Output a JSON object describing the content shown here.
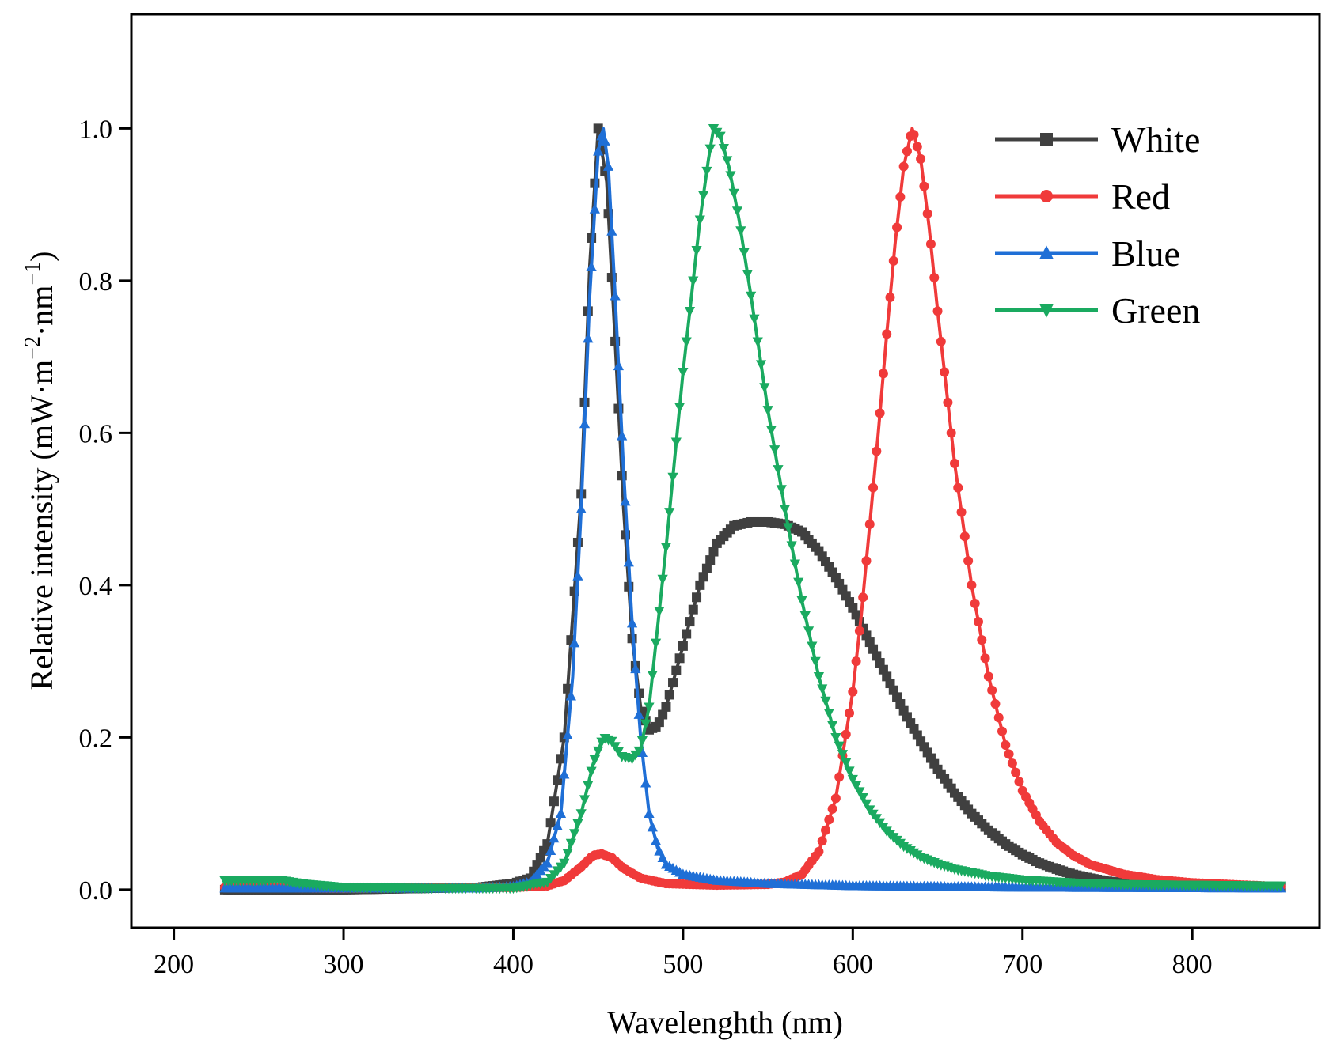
{
  "chart_data": {
    "type": "line",
    "title": "",
    "xlabel": "Wavelenghth (nm)",
    "ylabel": "Relative intensity (mW·m",
    "ylabel_sup1": "−2",
    "ylabel_mid": "·nm",
    "ylabel_sup2": "−1",
    "ylabel_end": ")",
    "xlim": [
      175,
      875
    ],
    "ylim": [
      -0.05,
      1.15
    ],
    "xticks": [
      "200",
      "300",
      "400",
      "500",
      "600",
      "700",
      "800"
    ],
    "yticks": [
      "0.0",
      "0.2",
      "0.4",
      "0.6",
      "0.8",
      "1.0"
    ],
    "legend_position": "top-right",
    "series": [
      {
        "name": "White",
        "color": "#404040",
        "marker": "square",
        "points": [
          [
            230,
            0.0
          ],
          [
            300,
            0.0
          ],
          [
            380,
            0.003
          ],
          [
            400,
            0.008
          ],
          [
            410,
            0.015
          ],
          [
            420,
            0.06
          ],
          [
            430,
            0.2
          ],
          [
            440,
            0.52
          ],
          [
            445,
            0.82
          ],
          [
            450,
            1.0
          ],
          [
            455,
            0.93
          ],
          [
            460,
            0.72
          ],
          [
            465,
            0.5
          ],
          [
            470,
            0.33
          ],
          [
            475,
            0.24
          ],
          [
            480,
            0.21
          ],
          [
            485,
            0.215
          ],
          [
            490,
            0.24
          ],
          [
            500,
            0.32
          ],
          [
            510,
            0.4
          ],
          [
            520,
            0.455
          ],
          [
            530,
            0.478
          ],
          [
            540,
            0.483
          ],
          [
            550,
            0.483
          ],
          [
            560,
            0.48
          ],
          [
            570,
            0.47
          ],
          [
            580,
            0.445
          ],
          [
            590,
            0.41
          ],
          [
            600,
            0.37
          ],
          [
            610,
            0.325
          ],
          [
            620,
            0.28
          ],
          [
            630,
            0.235
          ],
          [
            640,
            0.195
          ],
          [
            650,
            0.158
          ],
          [
            660,
            0.127
          ],
          [
            670,
            0.1
          ],
          [
            680,
            0.078
          ],
          [
            690,
            0.06
          ],
          [
            700,
            0.046
          ],
          [
            710,
            0.035
          ],
          [
            720,
            0.027
          ],
          [
            730,
            0.02
          ],
          [
            740,
            0.015
          ],
          [
            750,
            0.011
          ],
          [
            760,
            0.009
          ],
          [
            780,
            0.007
          ],
          [
            800,
            0.005
          ],
          [
            830,
            0.004
          ],
          [
            852,
            0.003
          ]
        ]
      },
      {
        "name": "Red",
        "color": "#f03a3a",
        "marker": "circle",
        "points": [
          [
            230,
            0.003
          ],
          [
            300,
            0.002
          ],
          [
            400,
            0.003
          ],
          [
            420,
            0.005
          ],
          [
            430,
            0.012
          ],
          [
            440,
            0.03
          ],
          [
            447,
            0.045
          ],
          [
            452,
            0.047
          ],
          [
            458,
            0.042
          ],
          [
            465,
            0.028
          ],
          [
            475,
            0.015
          ],
          [
            490,
            0.008
          ],
          [
            520,
            0.006
          ],
          [
            550,
            0.007
          ],
          [
            560,
            0.01
          ],
          [
            570,
            0.02
          ],
          [
            580,
            0.05
          ],
          [
            590,
            0.12
          ],
          [
            600,
            0.26
          ],
          [
            605,
            0.36
          ],
          [
            610,
            0.48
          ],
          [
            615,
            0.6
          ],
          [
            620,
            0.73
          ],
          [
            625,
            0.85
          ],
          [
            630,
            0.95
          ],
          [
            635,
            1.0
          ],
          [
            640,
            0.96
          ],
          [
            645,
            0.87
          ],
          [
            650,
            0.76
          ],
          [
            655,
            0.66
          ],
          [
            660,
            0.56
          ],
          [
            670,
            0.4
          ],
          [
            680,
            0.28
          ],
          [
            690,
            0.19
          ],
          [
            700,
            0.13
          ],
          [
            710,
            0.09
          ],
          [
            720,
            0.062
          ],
          [
            730,
            0.045
          ],
          [
            740,
            0.033
          ],
          [
            760,
            0.02
          ],
          [
            780,
            0.013
          ],
          [
            800,
            0.009
          ],
          [
            830,
            0.006
          ],
          [
            852,
            0.004
          ]
        ]
      },
      {
        "name": "Blue",
        "color": "#1f6fd6",
        "marker": "triangle-up",
        "points": [
          [
            230,
            0.002
          ],
          [
            300,
            0.002
          ],
          [
            380,
            0.002
          ],
          [
            400,
            0.004
          ],
          [
            410,
            0.01
          ],
          [
            420,
            0.035
          ],
          [
            428,
            0.1
          ],
          [
            435,
            0.28
          ],
          [
            440,
            0.5
          ],
          [
            445,
            0.78
          ],
          [
            450,
            0.97
          ],
          [
            453,
            1.0
          ],
          [
            456,
            0.95
          ],
          [
            460,
            0.78
          ],
          [
            465,
            0.55
          ],
          [
            470,
            0.35
          ],
          [
            475,
            0.2
          ],
          [
            480,
            0.1
          ],
          [
            485,
            0.055
          ],
          [
            490,
            0.033
          ],
          [
            500,
            0.02
          ],
          [
            520,
            0.012
          ],
          [
            550,
            0.008
          ],
          [
            600,
            0.005
          ],
          [
            700,
            0.003
          ],
          [
            852,
            0.002
          ]
        ]
      },
      {
        "name": "Green",
        "color": "#1aaa60",
        "marker": "triangle-down",
        "points": [
          [
            230,
            0.012
          ],
          [
            250,
            0.012
          ],
          [
            262,
            0.013
          ],
          [
            275,
            0.008
          ],
          [
            300,
            0.003
          ],
          [
            350,
            0.002
          ],
          [
            400,
            0.002
          ],
          [
            420,
            0.01
          ],
          [
            430,
            0.035
          ],
          [
            440,
            0.1
          ],
          [
            447,
            0.165
          ],
          [
            453,
            0.2
          ],
          [
            458,
            0.195
          ],
          [
            464,
            0.175
          ],
          [
            470,
            0.172
          ],
          [
            475,
            0.185
          ],
          [
            480,
            0.24
          ],
          [
            490,
            0.45
          ],
          [
            500,
            0.68
          ],
          [
            505,
            0.78
          ],
          [
            510,
            0.88
          ],
          [
            515,
            0.96
          ],
          [
            518,
            1.0
          ],
          [
            522,
            0.99
          ],
          [
            527,
            0.95
          ],
          [
            533,
            0.88
          ],
          [
            540,
            0.78
          ],
          [
            550,
            0.63
          ],
          [
            560,
            0.5
          ],
          [
            570,
            0.38
          ],
          [
            580,
            0.28
          ],
          [
            590,
            0.2
          ],
          [
            600,
            0.145
          ],
          [
            610,
            0.105
          ],
          [
            620,
            0.077
          ],
          [
            630,
            0.057
          ],
          [
            640,
            0.043
          ],
          [
            650,
            0.034
          ],
          [
            660,
            0.027
          ],
          [
            680,
            0.018
          ],
          [
            700,
            0.013
          ],
          [
            730,
            0.009
          ],
          [
            760,
            0.007
          ],
          [
            800,
            0.006
          ],
          [
            852,
            0.005
          ]
        ]
      }
    ]
  }
}
